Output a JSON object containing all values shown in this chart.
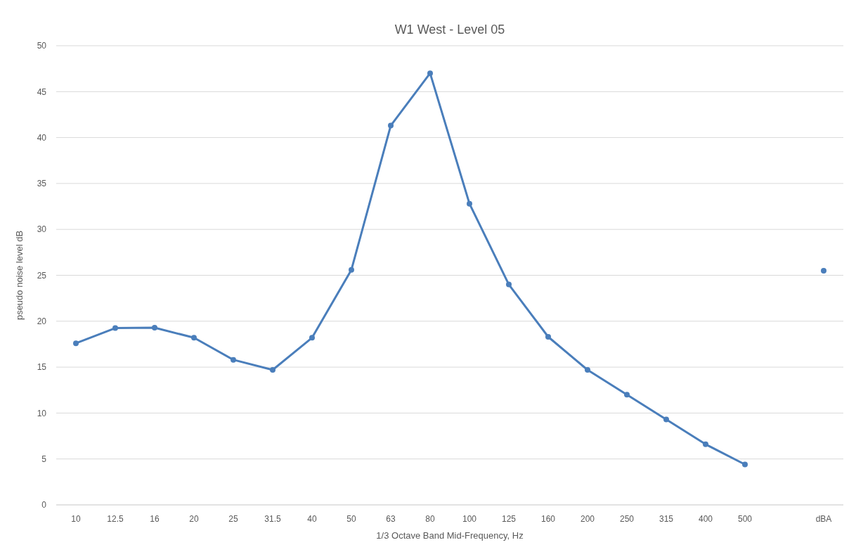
{
  "chart_data": {
    "type": "line",
    "title": "W1 West - Level 05",
    "xlabel": "1/3 Octave Band Mid-Frequency, Hz",
    "ylabel": "pseudo noise level dB",
    "categories": [
      "10",
      "12.5",
      "16",
      "20",
      "25",
      "31.5",
      "40",
      "50",
      "63",
      "80",
      "100",
      "125",
      "160",
      "200",
      "250",
      "315",
      "400",
      "500",
      null,
      "dBA"
    ],
    "series": [
      {
        "color": "#4a7ebb",
        "values": [
          17.6,
          19.25,
          19.3,
          18.2,
          15.8,
          14.7,
          18.2,
          25.6,
          41.3,
          47.0,
          32.8,
          24.0,
          18.3,
          14.7,
          12.0,
          9.3,
          6.6,
          4.4,
          null,
          25.5
        ]
      }
    ],
    "ylim": [
      0,
      50
    ],
    "yticks": [
      0,
      5,
      10,
      15,
      20,
      25,
      30,
      35,
      40,
      45,
      50
    ],
    "grid": "y",
    "marker": "circle",
    "line_style": "solid"
  }
}
